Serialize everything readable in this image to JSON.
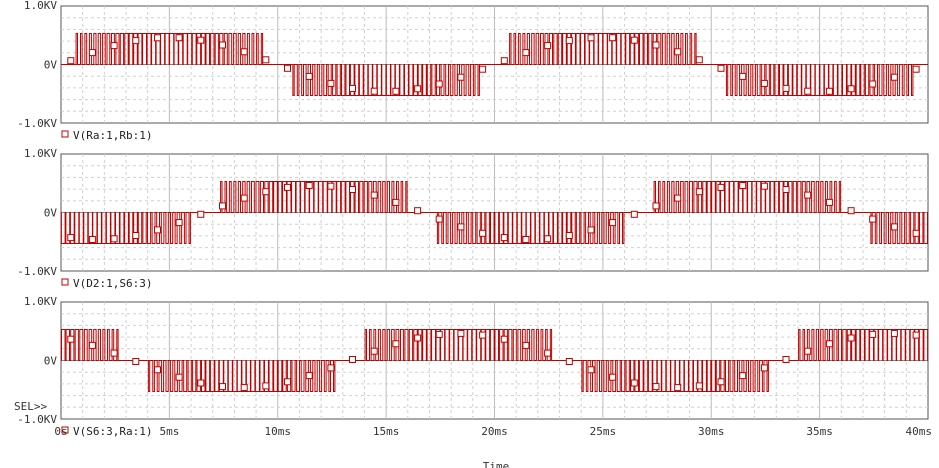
{
  "chart_data": {
    "type": "line",
    "xlabel": "Time",
    "x_range_ms": [
      0,
      40
    ],
    "x_ticks": [
      "0s",
      "5ms",
      "10ms",
      "15ms",
      "20ms",
      "25ms",
      "30ms",
      "35ms",
      "40ms"
    ],
    "grid": true,
    "line_color": "#c00000",
    "marker": "square",
    "sel_label": "SEL>>",
    "panels": [
      {
        "trace": "V(Ra:1,Rb:1)",
        "ylim": [
          -1.0,
          1.0
        ],
        "y_unit": "kV",
        "y_ticks": [
          "1.0KV",
          "0V",
          "-1.0KV"
        ],
        "amplitude_kv": 0.53,
        "phase_deg": 0
      },
      {
        "trace": "V(D2:1,S6:3)",
        "ylim": [
          -1.0,
          1.0
        ],
        "y_unit": "kV",
        "y_ticks": [
          "1.0KV",
          "0V",
          "-1.0KV"
        ],
        "amplitude_kv": 0.53,
        "phase_deg": 120
      },
      {
        "trace": "V(S6:3,Ra:1)",
        "ylim": [
          -1.0,
          1.0
        ],
        "y_unit": "kV",
        "y_ticks": [
          "1.0KV",
          "0V",
          "-1.0KV"
        ],
        "amplitude_kv": 0.53,
        "phase_deg": 240
      }
    ]
  }
}
